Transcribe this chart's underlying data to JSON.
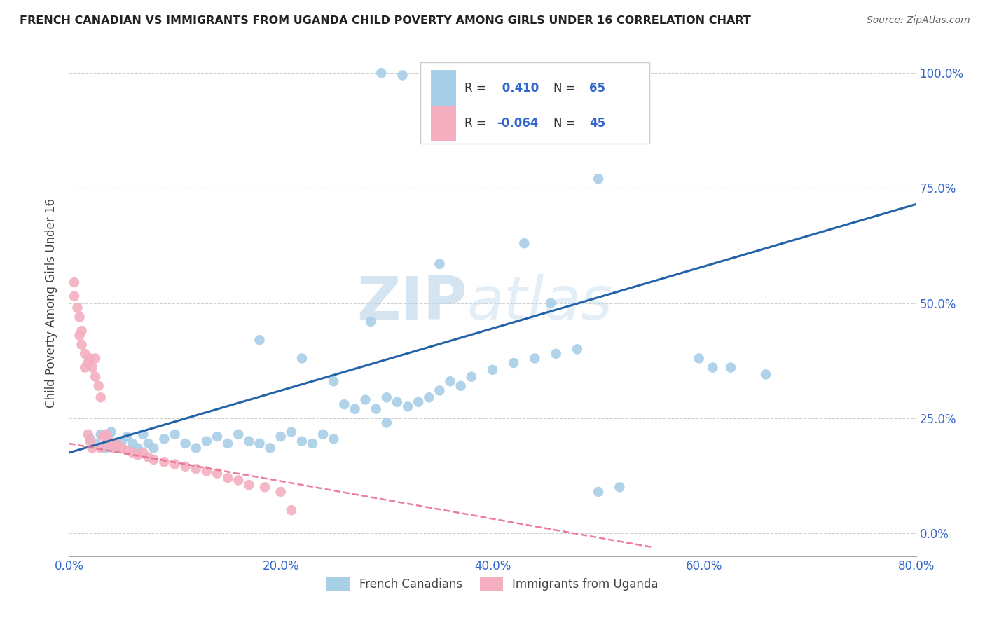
{
  "title": "FRENCH CANADIAN VS IMMIGRANTS FROM UGANDA CHILD POVERTY AMONG GIRLS UNDER 16 CORRELATION CHART",
  "source": "Source: ZipAtlas.com",
  "ylabel": "Child Poverty Among Girls Under 16",
  "r_blue": 0.41,
  "n_blue": 65,
  "r_pink": -0.064,
  "n_pink": 45,
  "blue_color": "#a8cfe8",
  "pink_color": "#f4aec0",
  "trendline_blue": "#2563a8",
  "trendline_pink": "#e87090",
  "watermark_zip": "ZIP",
  "watermark_atlas": "atlas",
  "legend_entries": [
    "French Canadians",
    "Immigrants from Uganda"
  ],
  "xlim": [
    0.0,
    0.8
  ],
  "ylim": [
    -0.05,
    1.05
  ],
  "ytick_vals": [
    0.0,
    0.25,
    0.5,
    0.75,
    1.0
  ],
  "xtick_vals": [
    0.0,
    0.2,
    0.4,
    0.6,
    0.8
  ],
  "ytick_labels": [
    "0.0%",
    "25.0%",
    "50.0%",
    "75.0%",
    "100.0%"
  ],
  "xtick_labels": [
    "0.0%",
    "20.0%",
    "40.0%",
    "60.0%",
    "80.0%"
  ],
  "background_color": "#ffffff",
  "grid_color": "#d0d0d0",
  "tick_color": "#3366cc"
}
